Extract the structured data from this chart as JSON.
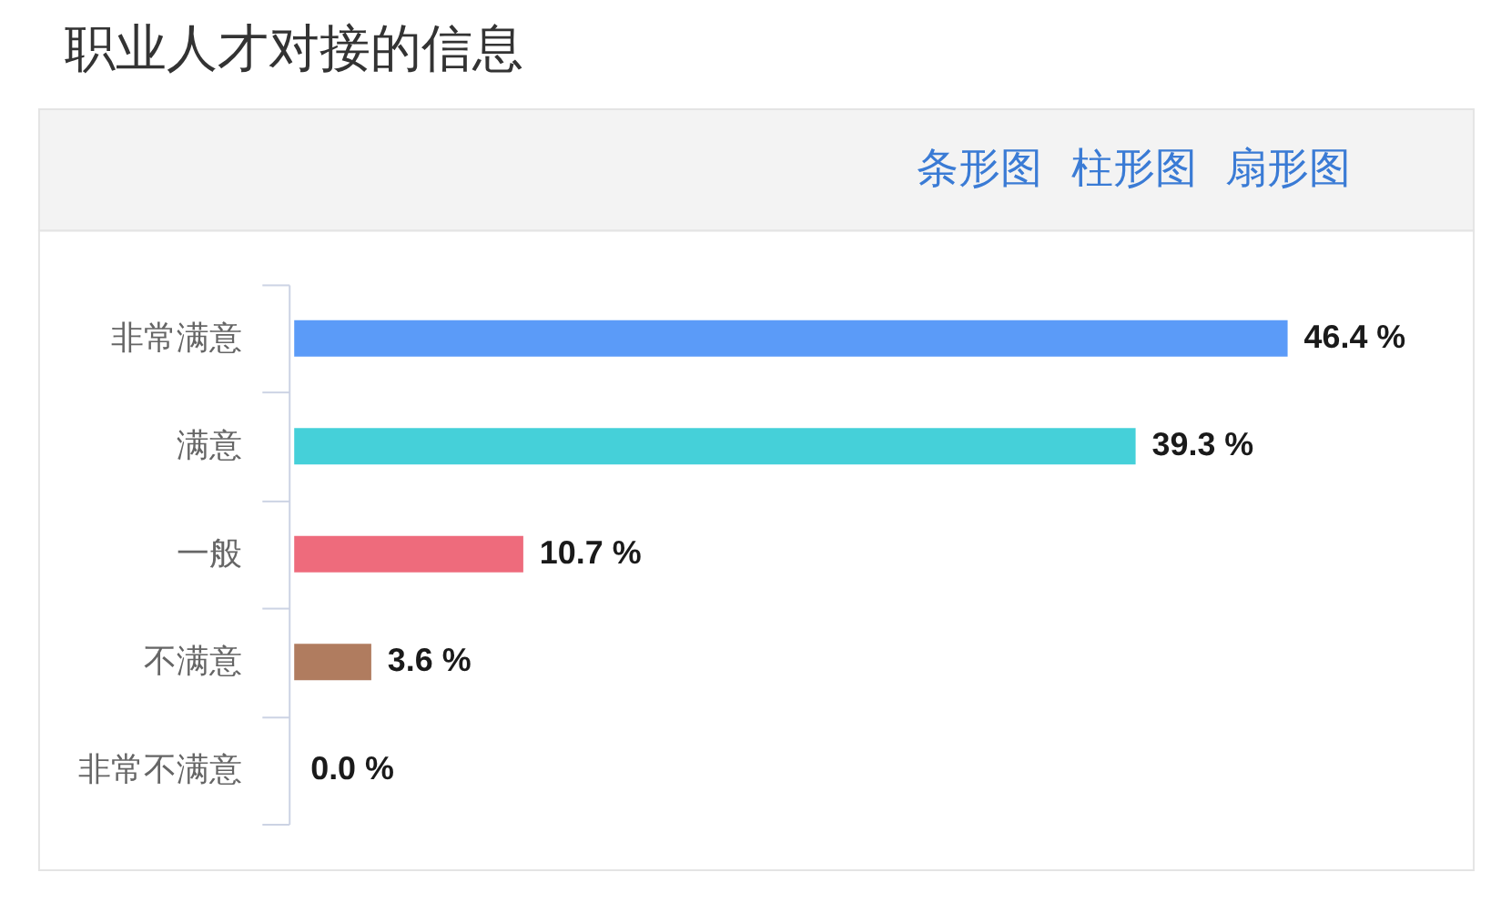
{
  "chart_data": {
    "type": "bar",
    "orientation": "horizontal",
    "title": "职业人才对接的信息",
    "categories": [
      "非常满意",
      "满意",
      "一般",
      "不满意",
      "非常不满意"
    ],
    "values": [
      46.4,
      39.3,
      10.7,
      3.6,
      0.0
    ],
    "colors": [
      "#5b9bf8",
      "#45d0d9",
      "#ee6b7c",
      "#b07c5f",
      null
    ],
    "value_labels": [
      "46.4 %",
      "39.3 %",
      "10.7 %",
      "3.6 %",
      "0.0 %"
    ],
    "annotations": [
      "条形图",
      "柱形图",
      "扇形图"
    ]
  }
}
